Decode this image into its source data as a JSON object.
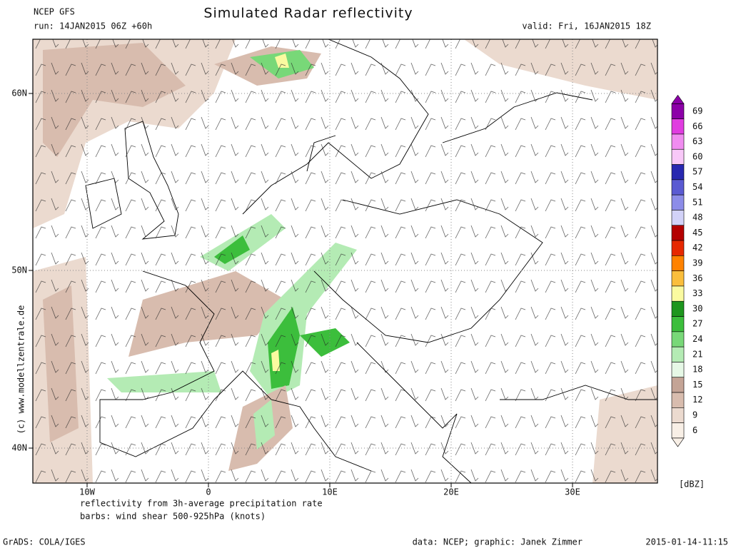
{
  "header": {
    "model": "NCEP GFS",
    "title": "Simulated Radar reflectivity",
    "run": "run: 14JAN2015 06Z +60h",
    "valid": "valid: Fri, 16JAN2015 18Z"
  },
  "map": {
    "lon_labels": [
      "10W",
      "0",
      "10E",
      "20E",
      "30E"
    ],
    "lat_labels": [
      "60N",
      "50N",
      "40N"
    ]
  },
  "colorbar": {
    "unit": "[dBZ]",
    "levels": [
      {
        "label": 69,
        "color": "#8c00a8"
      },
      {
        "label": 66,
        "color": "#e03ce0"
      },
      {
        "label": 63,
        "color": "#f08cf0"
      },
      {
        "label": 60,
        "color": "#f8c8f8"
      },
      {
        "label": 57,
        "color": "#2828b0"
      },
      {
        "label": 54,
        "color": "#5a5ad2"
      },
      {
        "label": 51,
        "color": "#8c8ce8"
      },
      {
        "label": 48,
        "color": "#d2d2f8"
      },
      {
        "label": 45,
        "color": "#b40000"
      },
      {
        "label": 42,
        "color": "#e62800"
      },
      {
        "label": 39,
        "color": "#ff8200"
      },
      {
        "label": 36,
        "color": "#fabe3c"
      },
      {
        "label": 33,
        "color": "#fafaa0"
      },
      {
        "label": 30,
        "color": "#1e961e"
      },
      {
        "label": 27,
        "color": "#3cbe3c"
      },
      {
        "label": 24,
        "color": "#78d878"
      },
      {
        "label": 21,
        "color": "#b4ebb4"
      },
      {
        "label": 18,
        "color": "#e6f8e6"
      },
      {
        "label": 15,
        "color": "#c4a496"
      },
      {
        "label": 12,
        "color": "#d8bcae"
      },
      {
        "label": 9,
        "color": "#ebdacf"
      },
      {
        "label": 6,
        "color": "#f8efe6"
      }
    ]
  },
  "notes": [
    "reflectivity from 3h-average precipitation rate",
    "barbs: wind shear 500-925hPa (knots)"
  ],
  "credit": "(c) www.modellzentrale.de",
  "footer": {
    "software": "GrADS: COLA/IGES",
    "source": "data: NCEP; graphic: Janek Zimmer",
    "timestamp": "2015-01-14-11:15"
  }
}
